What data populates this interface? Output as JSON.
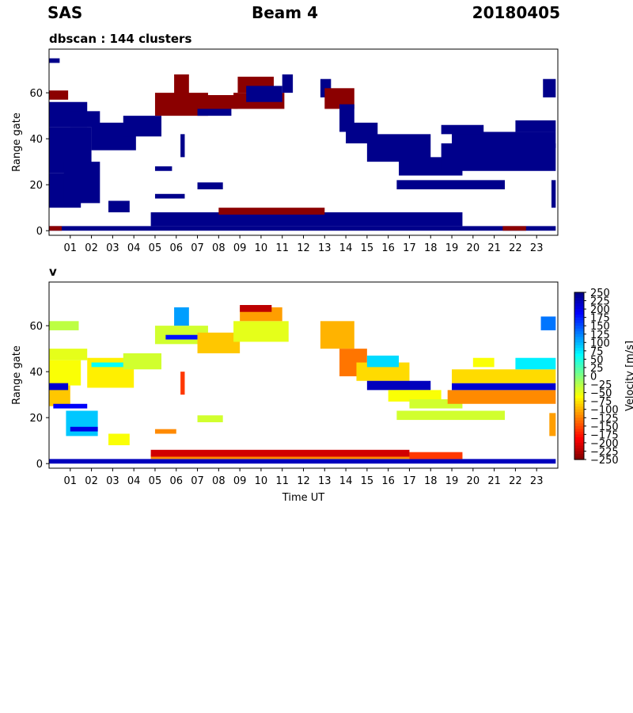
{
  "header": {
    "left": "SAS",
    "center": "Beam 4",
    "right": "20180405"
  },
  "colors": {
    "cluster_dominant": "#00008b",
    "cluster_secondary": "#8b0000",
    "cluster_minor": "#ffd400"
  },
  "chart_data": [
    {
      "type": "heatmap",
      "title": "dbscan : 144 clusters",
      "xlabel": "",
      "ylabel": "Range gate",
      "xlim": [
        0,
        24
      ],
      "ylim": [
        -2,
        79
      ],
      "xticks": [
        "01",
        "02",
        "03",
        "04",
        "05",
        "06",
        "07",
        "08",
        "09",
        "10",
        "11",
        "12",
        "13",
        "14",
        "15",
        "16",
        "17",
        "18",
        "19",
        "20",
        "21",
        "22",
        "23"
      ],
      "yticks": [
        0,
        20,
        40,
        60
      ],
      "grid": false,
      "bands": [
        {
          "t0": 0.0,
          "t1": 23.9,
          "g0": 0,
          "g1": 2,
          "color": "#00008b"
        },
        {
          "t0": 0.0,
          "t1": 0.6,
          "g0": 0,
          "g1": 2,
          "color": "#8b0000"
        },
        {
          "t0": 21.4,
          "t1": 22.5,
          "g0": 0,
          "g1": 2,
          "color": "#8b0000"
        },
        {
          "t0": 4.8,
          "t1": 19.5,
          "g0": 2,
          "g1": 8,
          "color": "#00008b"
        },
        {
          "t0": 8.0,
          "t1": 13.0,
          "g0": 7,
          "g1": 10,
          "color": "#8b0000"
        },
        {
          "t0": 0.0,
          "t1": 0.9,
          "g0": 57,
          "g1": 61,
          "color": "#8b0000"
        },
        {
          "t0": 0.0,
          "t1": 0.5,
          "g0": 73,
          "g1": 75,
          "color": "#00008b"
        },
        {
          "t0": 0.0,
          "t1": 2.0,
          "g0": 25,
          "g1": 45,
          "color": "#00008b"
        },
        {
          "t0": 0.0,
          "t1": 1.5,
          "g0": 10,
          "g1": 25,
          "color": "#00008b"
        },
        {
          "t0": 0.7,
          "t1": 2.4,
          "g0": 12,
          "g1": 30,
          "color": "#00008b"
        },
        {
          "t0": 0.0,
          "t1": 1.8,
          "g0": 45,
          "g1": 56,
          "color": "#00008b"
        },
        {
          "t0": 2.0,
          "t1": 4.1,
          "g0": 35,
          "g1": 47,
          "color": "#00008b"
        },
        {
          "t0": 3.5,
          "t1": 5.3,
          "g0": 41,
          "g1": 50,
          "color": "#00008b"
        },
        {
          "t0": 1.0,
          "t1": 2.4,
          "g0": 45,
          "g1": 52,
          "color": "#00008b"
        },
        {
          "t0": 2.8,
          "t1": 3.8,
          "g0": 8,
          "g1": 13,
          "color": "#00008b"
        },
        {
          "t0": 5.0,
          "t1": 7.5,
          "g0": 50,
          "g1": 60,
          "color": "#8b0000"
        },
        {
          "t0": 5.9,
          "t1": 6.6,
          "g0": 58,
          "g1": 68,
          "color": "#8b0000"
        },
        {
          "t0": 7.0,
          "t1": 8.6,
          "g0": 50,
          "g1": 55,
          "color": "#00008b"
        },
        {
          "t0": 7.0,
          "t1": 8.9,
          "g0": 53,
          "g1": 59,
          "color": "#8b0000"
        },
        {
          "t0": 8.7,
          "t1": 11.1,
          "g0": 53,
          "g1": 60,
          "color": "#8b0000"
        },
        {
          "t0": 8.9,
          "t1": 10.6,
          "g0": 60,
          "g1": 67,
          "color": "#8b0000"
        },
        {
          "t0": 9.3,
          "t1": 11.0,
          "g0": 56,
          "g1": 63,
          "color": "#00008b"
        },
        {
          "t0": 11.0,
          "t1": 11.5,
          "g0": 60,
          "g1": 68,
          "color": "#00008b"
        },
        {
          "t0": 12.8,
          "t1": 13.3,
          "g0": 58,
          "g1": 66,
          "color": "#00008b"
        },
        {
          "t0": 13.0,
          "t1": 14.4,
          "g0": 53,
          "g1": 62,
          "color": "#8b0000"
        },
        {
          "t0": 13.7,
          "t1": 14.4,
          "g0": 43,
          "g1": 55,
          "color": "#00008b"
        },
        {
          "t0": 14.0,
          "t1": 15.5,
          "g0": 38,
          "g1": 47,
          "color": "#00008b"
        },
        {
          "t0": 15.0,
          "t1": 18.0,
          "g0": 30,
          "g1": 42,
          "color": "#00008b"
        },
        {
          "t0": 16.5,
          "t1": 19.5,
          "g0": 24,
          "g1": 32,
          "color": "#00008b"
        },
        {
          "t0": 18.5,
          "t1": 23.9,
          "g0": 26,
          "g1": 38,
          "color": "#00008b"
        },
        {
          "t0": 19.0,
          "t1": 23.9,
          "g0": 36,
          "g1": 43,
          "color": "#00008b"
        },
        {
          "t0": 22.0,
          "t1": 23.9,
          "g0": 43,
          "g1": 48,
          "color": "#00008b"
        },
        {
          "t0": 16.4,
          "t1": 21.5,
          "g0": 18,
          "g1": 22,
          "color": "#00008b"
        },
        {
          "t0": 18.5,
          "t1": 20.5,
          "g0": 42,
          "g1": 46,
          "color": "#00008b"
        },
        {
          "t0": 5.0,
          "t1": 5.8,
          "g0": 26,
          "g1": 28,
          "color": "#00008b"
        },
        {
          "t0": 6.2,
          "t1": 6.4,
          "g0": 32,
          "g1": 42,
          "color": "#00008b"
        },
        {
          "t0": 5.0,
          "t1": 6.4,
          "g0": 14,
          "g1": 16,
          "color": "#00008b"
        },
        {
          "t0": 7.0,
          "t1": 8.2,
          "g0": 18,
          "g1": 21,
          "color": "#00008b"
        },
        {
          "t0": 23.3,
          "t1": 23.9,
          "g0": 58,
          "g1": 66,
          "color": "#00008b"
        },
        {
          "t0": 23.7,
          "t1": 23.9,
          "g0": 10,
          "g1": 22,
          "color": "#00008b"
        }
      ]
    },
    {
      "type": "heatmap",
      "title": "v",
      "xlabel": "Time UT",
      "ylabel": "Range gate",
      "xlim": [
        0,
        24
      ],
      "ylim": [
        -2,
        79
      ],
      "xticks": [
        "01",
        "02",
        "03",
        "04",
        "05",
        "06",
        "07",
        "08",
        "09",
        "10",
        "11",
        "12",
        "13",
        "14",
        "15",
        "16",
        "17",
        "18",
        "19",
        "20",
        "21",
        "22",
        "23"
      ],
      "yticks": [
        0,
        20,
        40,
        60
      ],
      "grid": false,
      "colorbar": {
        "label": "Velocity [m/s]",
        "min": -250,
        "max": 250,
        "ticks": [
          "250",
          "225",
          "200",
          "175",
          "150",
          "125",
          "100",
          "75",
          "50",
          "25",
          "0",
          "−25",
          "−50",
          "−75",
          "−100",
          "−125",
          "−150",
          "−175",
          "−200",
          "−225",
          "−250"
        ]
      },
      "bands": [
        {
          "t0": 0.0,
          "t1": 23.9,
          "g0": 0,
          "g1": 2,
          "v": 220
        },
        {
          "t0": 4.8,
          "t1": 19.5,
          "g0": 2,
          "g1": 4,
          "v": -120
        },
        {
          "t0": 4.8,
          "t1": 17.0,
          "g0": 3,
          "g1": 6,
          "v": -210
        },
        {
          "t0": 17.0,
          "t1": 19.5,
          "g0": 2,
          "g1": 5,
          "v": -160
        },
        {
          "t0": 0.0,
          "t1": 1.0,
          "g0": 25,
          "g1": 34,
          "v": -90
        },
        {
          "t0": 0.0,
          "t1": 1.5,
          "g0": 34,
          "g1": 45,
          "v": -60
        },
        {
          "t0": 0.0,
          "t1": 0.9,
          "g0": 32,
          "g1": 35,
          "v": 210
        },
        {
          "t0": 0.8,
          "t1": 2.3,
          "g0": 12,
          "g1": 23,
          "v": 90
        },
        {
          "t0": 1.0,
          "t1": 2.3,
          "g0": 14,
          "g1": 16,
          "v": 200
        },
        {
          "t0": 0.2,
          "t1": 1.8,
          "g0": 24,
          "g1": 26,
          "v": 190
        },
        {
          "t0": 0.0,
          "t1": 1.8,
          "g0": 45,
          "g1": 50,
          "v": -50
        },
        {
          "t0": 1.8,
          "t1": 4.0,
          "g0": 33,
          "g1": 46,
          "v": -70
        },
        {
          "t0": 2.0,
          "t1": 4.0,
          "g0": 42,
          "g1": 44,
          "v": 60
        },
        {
          "t0": 3.5,
          "t1": 5.3,
          "g0": 41,
          "g1": 48,
          "v": -40
        },
        {
          "t0": 2.8,
          "t1": 3.8,
          "g0": 8,
          "g1": 13,
          "v": -60
        },
        {
          "t0": 0.0,
          "t1": 1.4,
          "g0": 58,
          "g1": 62,
          "v": -30
        },
        {
          "t0": 5.0,
          "t1": 7.5,
          "g0": 52,
          "g1": 60,
          "v": -40
        },
        {
          "t0": 5.5,
          "t1": 7.0,
          "g0": 54,
          "g1": 56,
          "v": 180
        },
        {
          "t0": 5.9,
          "t1": 6.6,
          "g0": 60,
          "g1": 68,
          "v": 110
        },
        {
          "t0": 7.0,
          "t1": 9.0,
          "g0": 48,
          "g1": 57,
          "v": -90
        },
        {
          "t0": 8.7,
          "t1": 11.3,
          "g0": 53,
          "g1": 62,
          "v": -50
        },
        {
          "t0": 9.0,
          "t1": 11.0,
          "g0": 62,
          "g1": 68,
          "v": -110
        },
        {
          "t0": 9.0,
          "t1": 10.5,
          "g0": 66,
          "g1": 69,
          "v": -220
        },
        {
          "t0": 12.8,
          "t1": 14.4,
          "g0": 50,
          "g1": 62,
          "v": -100
        },
        {
          "t0": 13.7,
          "t1": 15.0,
          "g0": 38,
          "g1": 50,
          "v": -130
        },
        {
          "t0": 14.5,
          "t1": 17.0,
          "g0": 36,
          "g1": 44,
          "v": -80
        },
        {
          "t0": 15.0,
          "t1": 16.5,
          "g0": 42,
          "g1": 47,
          "v": 80
        },
        {
          "t0": 15.0,
          "t1": 18.0,
          "g0": 32,
          "g1": 36,
          "v": 220
        },
        {
          "t0": 16.0,
          "t1": 18.5,
          "g0": 27,
          "g1": 32,
          "v": -60
        },
        {
          "t0": 17.0,
          "t1": 19.5,
          "g0": 24,
          "g1": 28,
          "v": -40
        },
        {
          "t0": 18.8,
          "t1": 23.9,
          "g0": 26,
          "g1": 32,
          "v": -120
        },
        {
          "t0": 19.0,
          "t1": 23.9,
          "g0": 32,
          "g1": 35,
          "v": 210
        },
        {
          "t0": 19.0,
          "t1": 23.9,
          "g0": 35,
          "g1": 41,
          "v": -80
        },
        {
          "t0": 22.0,
          "t1": 23.9,
          "g0": 41,
          "g1": 46,
          "v": 70
        },
        {
          "t0": 16.4,
          "t1": 21.5,
          "g0": 19,
          "g1": 23,
          "v": -40
        },
        {
          "t0": 20.0,
          "t1": 21.0,
          "g0": 42,
          "g1": 46,
          "v": -60
        },
        {
          "t0": 23.2,
          "t1": 23.9,
          "g0": 58,
          "g1": 64,
          "v": 130
        },
        {
          "t0": 23.6,
          "t1": 23.9,
          "g0": 12,
          "g1": 22,
          "v": -110
        },
        {
          "t0": 5.0,
          "t1": 6.0,
          "g0": 13,
          "g1": 15,
          "v": -120
        },
        {
          "t0": 7.0,
          "t1": 8.2,
          "g0": 18,
          "g1": 21,
          "v": -40
        },
        {
          "t0": 6.2,
          "t1": 6.4,
          "g0": 30,
          "g1": 40,
          "v": -160
        }
      ]
    }
  ]
}
